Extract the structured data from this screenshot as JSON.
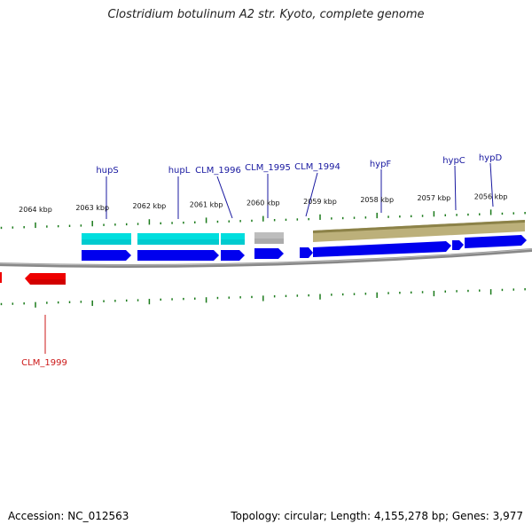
{
  "title": "Clostridium botulinum A2 str. Kyoto, complete genome",
  "footer": {
    "accession": "Accession: NC_012563",
    "summary": "Topology: circular; Length: 4,155,278 bp; Genes: 3,977"
  },
  "colors": {
    "cds": "#0000ee",
    "gene": "#00e0e0",
    "gene_alt": "#b8b8b8",
    "operon": "#b0a868",
    "reverse": "#ee0000",
    "tick": "#1a7a1a",
    "backbone": "#808080",
    "label_forward": "#1818a0",
    "label_reverse": "#cc1818"
  },
  "kbp_labels": [
    {
      "label": "2064 kbp",
      "kbp": 2064
    },
    {
      "label": "2063 kbp",
      "kbp": 2063
    },
    {
      "label": "2062 kbp",
      "kbp": 2062
    },
    {
      "label": "2061 kbp",
      "kbp": 2061
    },
    {
      "label": "2060 kbp",
      "kbp": 2060
    },
    {
      "label": "2059 kbp",
      "kbp": 2059
    },
    {
      "label": "2058 kbp",
      "kbp": 2058
    },
    {
      "label": "2057 kbp",
      "kbp": 2057
    },
    {
      "label": "2056 kbp",
      "kbp": 2056
    }
  ],
  "gene_labels": [
    {
      "label": "hupS",
      "strand": "forward"
    },
    {
      "label": "hupL",
      "strand": "forward"
    },
    {
      "label": "CLM_1996",
      "strand": "forward"
    },
    {
      "label": "CLM_1995",
      "strand": "forward"
    },
    {
      "label": "CLM_1994",
      "strand": "forward"
    },
    {
      "label": "hypF",
      "strand": "forward"
    },
    {
      "label": "hypC",
      "strand": "forward"
    },
    {
      "label": "hypD",
      "strand": "forward"
    },
    {
      "label": "CLM_1999",
      "strand": "reverse"
    }
  ]
}
